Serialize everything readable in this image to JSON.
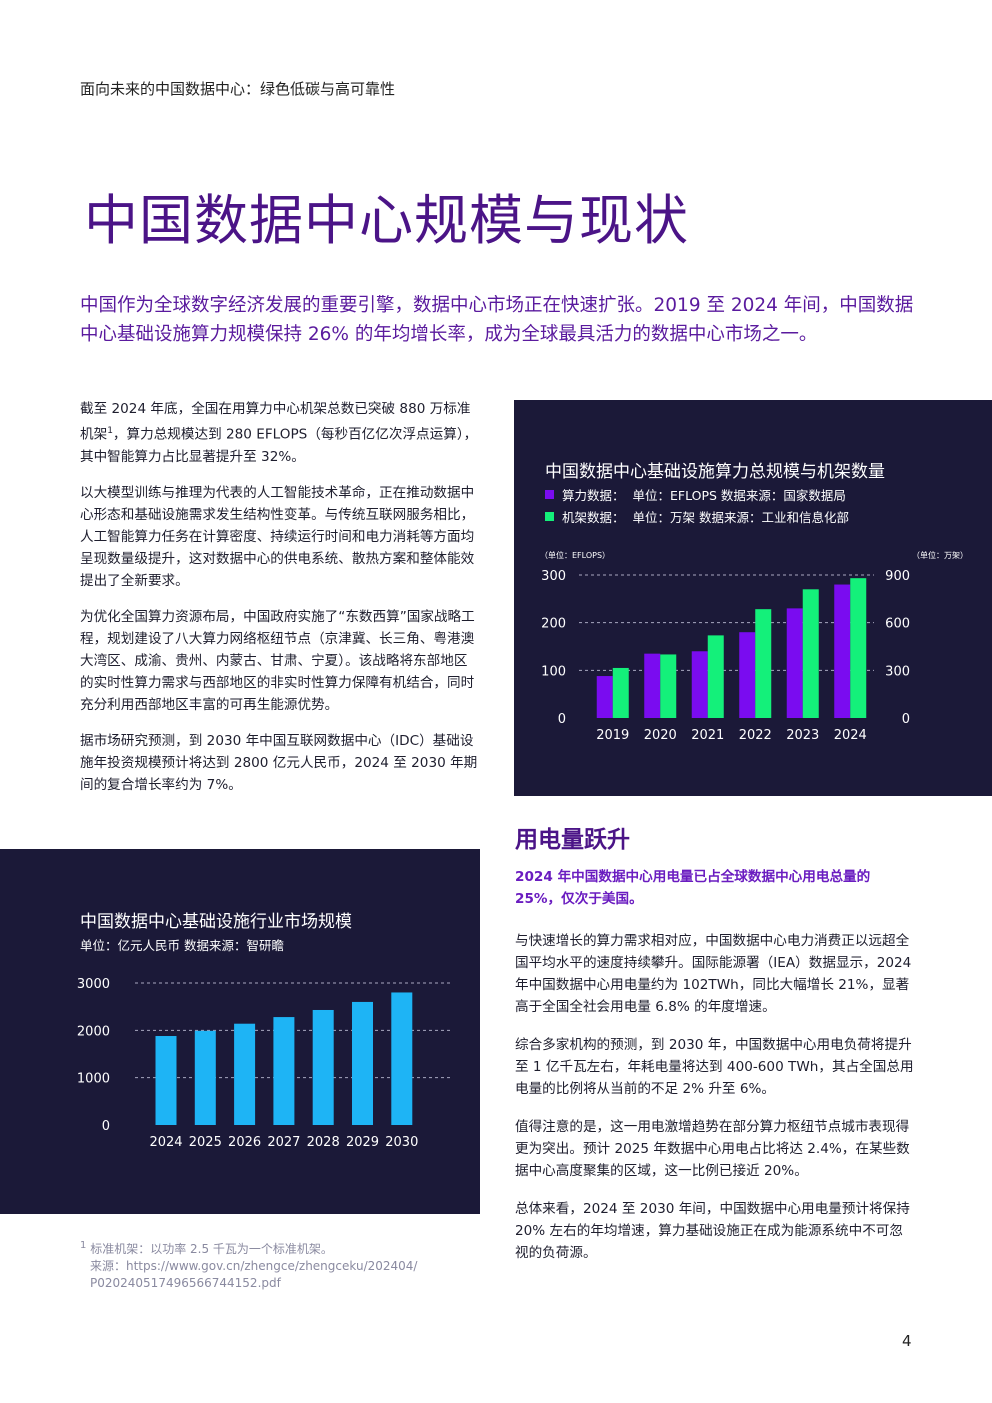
{
  "header": {
    "text": "面向未来的中国数据中心：绿色低碳与高可靠性"
  },
  "title": "中国数据中心规模与现状",
  "intro": "中国作为全球数字经济发展的重要引擎，数据中心市场正在快速扩张。2019 至 2024 年间，中国数据中心基础设施算力规模保持 26% 的年均增长率，成为全球最具活力的数据中心市场之一。",
  "left_paragraphs": {
    "p1_pre": "截至 2024 年底，全国在用算力中心机架总数已突破 880 万标准机架",
    "p1_sup": "1",
    "p1_post": "，算力总规模达到 280 EFLOPS（每秒百亿亿次浮点运算），其中智能算力占比显著提升至 32%。",
    "p2": "以大模型训练与推理为代表的人工智能技术革命，正在推动数据中心形态和基础设施需求发生结构性变革。与传统互联网服务相比，人工智能算力任务在计算密度、持续运行时间和电力消耗等方面均呈现数量级提升，这对数据中心的供电系统、散热方案和整体能效提出了全新要求。",
    "p3": "为优化全国算力资源布局，中国政府实施了“东数西算”国家战略工程，规划建设了八大算力网络枢纽节点（京津冀、长三角、粤港澳大湾区、成渝、贵州、内蒙古、甘肃、宁夏）。该战略将东部地区的实时性算力需求与西部地区的非实时性算力保障有机结合，同时充分利用西部地区丰富的可再生能源优势。",
    "p4": "据市场研究预测，到 2030 年中国互联网数据中心（IDC）基础设施年投资规模预计将达到 2800 亿元人民币，2024 至 2030 年期间的复合增长率约为 7%。"
  },
  "chart_top": {
    "title": "中国数据中心基础设施算力总规模与机架数量",
    "legend": [
      {
        "name": "算力数据：",
        "detail": "单位：EFLOPS    数据来源：国家数据局",
        "color": "#7a0cf0"
      },
      {
        "name": "机架数据：",
        "detail": "单位：万架    数据来源：工业和信息化部",
        "color": "#14f07a"
      }
    ],
    "left_unit": "（单位：EFLOPS）",
    "right_unit": "（单位：万架）"
  },
  "chart_bottom": {
    "title": "中国数据中心基础设施行业市场规模",
    "unit": "单位：亿元人民币    数据来源：智研瞻",
    "color": "#1eb4f5"
  },
  "section": {
    "title": "用电量跃升",
    "highlight": "2024 年中国数据中心用电量已占全球数据中心用电总量的 25%，仅次于美国。",
    "p1": "与快速增长的算力需求相对应，中国数据中心电力消费正以远超全国平均水平的速度持续攀升。国际能源署（IEA）数据显示，2024 年中国数据中心用电量约为 102TWh，同比大幅增长 21%，显著高于全国全社会用电量 6.8% 的年度增速。",
    "p2": "综合多家机构的预测，到 2030 年，中国数据中心用电负荷将提升至 1 亿千瓦左右，年耗电量将达到 400-600 TWh，其占全国总用电量的比例将从当前的不足 2% 升至 6%。",
    "p3": "值得注意的是，这一用电激增趋势在部分算力枢纽节点城市表现得更为突出。预计 2025 年数据中心用电占比将达 2.4%，在某些数据中心高度聚集的区域，这一比例已接近 20%。",
    "p4": "总体来看，2024 至 2030 年间，中国数据中心用电量预计将保持 20% 左右的年均增速，算力基础设施正在成为能源系统中不可忽视的负荷源。"
  },
  "footnote": {
    "sup": "1",
    "line1": "标准机架：以功率 2.5 千瓦为一个标准机架。",
    "line2": "来源：https://www.gov.cn/zhengce/zhengceku/202404/",
    "line3": "P020240517496566744152.pdf"
  },
  "page_number": "4",
  "chart_data": [
    {
      "type": "bar",
      "title": "中国数据中心基础设施算力总规模与机架数量",
      "categories": [
        "2019",
        "2020",
        "2021",
        "2022",
        "2023",
        "2024"
      ],
      "series": [
        {
          "name": "算力数据",
          "axis": "left",
          "unit": "EFLOPS",
          "values": [
            88,
            135,
            140,
            180,
            230,
            280
          ],
          "color": "#7a0cf0"
        },
        {
          "name": "机架数据",
          "axis": "right",
          "unit": "万架",
          "values": [
            315,
            400,
            520,
            685,
            810,
            880
          ],
          "color": "#14f07a"
        }
      ],
      "ylim_left": [
        0,
        300
      ],
      "yticks_left": [
        0,
        100,
        200,
        300
      ],
      "ylim_right": [
        0,
        900
      ],
      "yticks_right": [
        0,
        300,
        600,
        900
      ],
      "grid": true
    },
    {
      "type": "bar",
      "title": "中国数据中心基础设施行业市场规模",
      "categories": [
        "2024",
        "2025",
        "2026",
        "2027",
        "2028",
        "2029",
        "2030"
      ],
      "values": [
        1880,
        1990,
        2140,
        2280,
        2430,
        2600,
        2800
      ],
      "ylim": [
        0,
        3000
      ],
      "yticks": [
        0,
        1000,
        2000,
        3000
      ],
      "grid": true
    }
  ]
}
